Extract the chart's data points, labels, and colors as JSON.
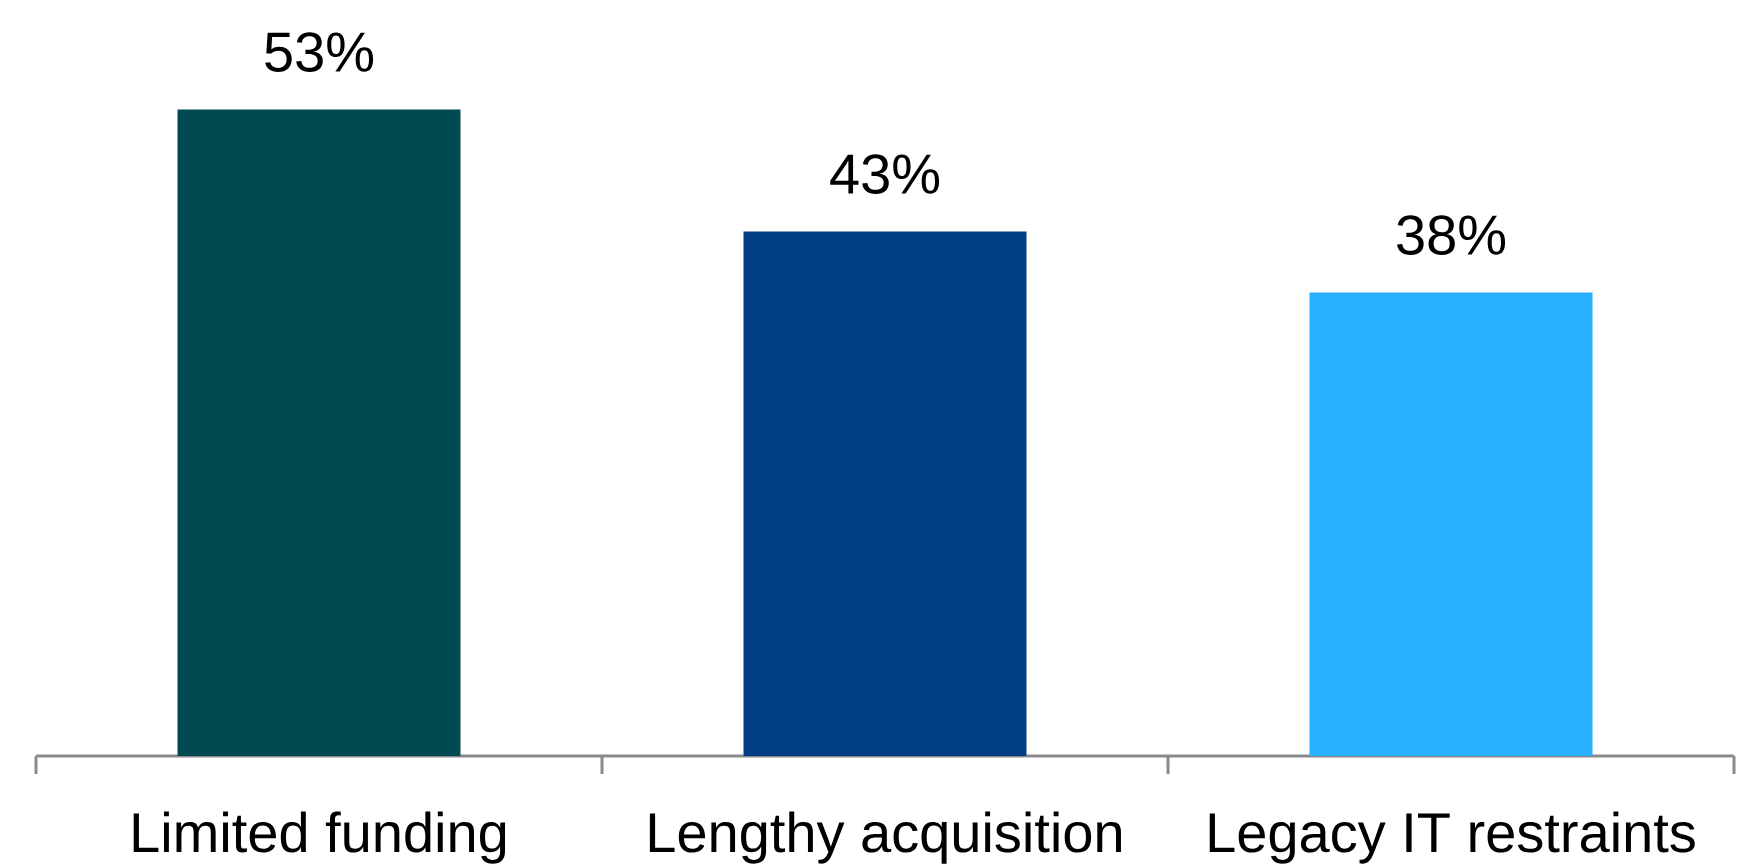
{
  "chart_data": {
    "type": "bar",
    "categories": [
      "Limited funding",
      "Lengthy acquisition",
      "Legacy IT restraints"
    ],
    "values": [
      53,
      43,
      38
    ],
    "colors": [
      "#024a51",
      "#003f84",
      "#27b0fe"
    ],
    "value_labels": [
      "53%",
      "43%",
      "38%"
    ]
  }
}
